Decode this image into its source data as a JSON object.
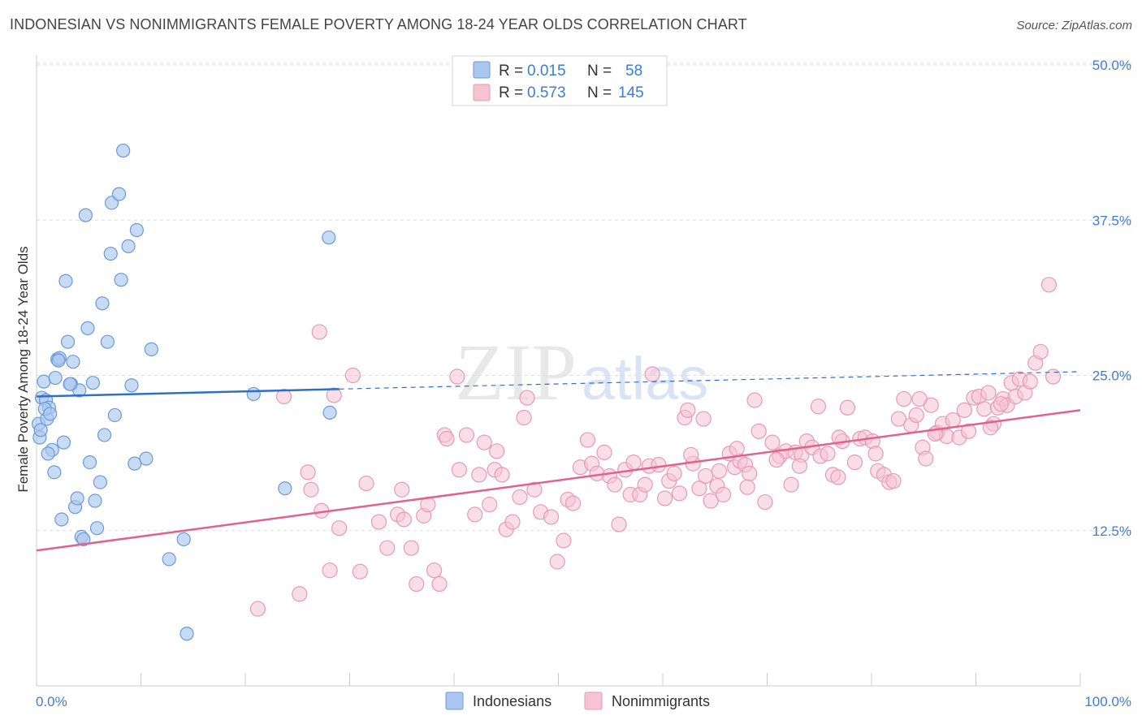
{
  "title": "INDONESIAN VS NONIMMIGRANTS FEMALE POVERTY AMONG 18-24 YEAR OLDS CORRELATION CHART",
  "source": "Source: ZipAtlas.com",
  "watermark": {
    "zip": "ZIP",
    "atlas": "atlas"
  },
  "colors": {
    "blue_fill": "#aac8ef",
    "blue_stroke": "#6a9ad8",
    "blue_line": "#2f6fcc",
    "pink_fill": "#f6c3d3",
    "pink_stroke": "#e79ab3",
    "pink_line": "#e0628e",
    "grid": "#dddddd",
    "axis_label": "#3d7dd6"
  },
  "legend": {
    "row1": {
      "r_label": "R = ",
      "r_value": "0.015",
      "n_label": "N = ",
      "n_value": "58"
    },
    "row2": {
      "r_label": "R = ",
      "r_value": "0.573",
      "n_label": "N = ",
      "n_value": "145"
    }
  },
  "chart_data": {
    "type": "scatter",
    "title": "INDONESIAN VS NONIMMIGRANTS FEMALE POVERTY AMONG 18-24 YEAR OLDS CORRELATION CHART",
    "xlabel": "",
    "ylabel": "Female Poverty Among 18-24 Year Olds",
    "xlim": [
      0,
      100
    ],
    "ylim": [
      0,
      50
    ],
    "x_tick_labels": [
      "0.0%",
      "100.0%"
    ],
    "y_ticks": [
      12.5,
      25.0,
      37.5,
      50.0
    ],
    "y_tick_labels": [
      "12.5%",
      "25.0%",
      "37.5%",
      "50.0%"
    ],
    "grid": true,
    "legend_position": "top-center",
    "series": [
      {
        "name": "Indonesians",
        "R": 0.015,
        "N": 58,
        "trend": {
          "x": [
            0,
            29
          ],
          "y": [
            23.3,
            23.9
          ]
        },
        "trend_extension": {
          "x": [
            29,
            100
          ],
          "y": [
            23.9,
            25.3
          ]
        },
        "points": [
          [
            0.2,
            21.1
          ],
          [
            0.3,
            20.0
          ],
          [
            0.5,
            23.2
          ],
          [
            0.7,
            24.5
          ],
          [
            0.9,
            23.0
          ],
          [
            1.0,
            21.5
          ],
          [
            1.2,
            22.4
          ],
          [
            1.5,
            19.0
          ],
          [
            1.7,
            17.2
          ],
          [
            1.8,
            24.8
          ],
          [
            2.0,
            26.3
          ],
          [
            2.2,
            26.4
          ],
          [
            2.4,
            13.4
          ],
          [
            2.6,
            19.6
          ],
          [
            2.8,
            32.6
          ],
          [
            3.0,
            27.7
          ],
          [
            3.3,
            24.3
          ],
          [
            3.5,
            26.1
          ],
          [
            3.7,
            14.4
          ],
          [
            3.9,
            15.1
          ],
          [
            4.1,
            23.8
          ],
          [
            4.3,
            12.0
          ],
          [
            4.5,
            11.8
          ],
          [
            4.7,
            37.9
          ],
          [
            4.9,
            28.8
          ],
          [
            5.1,
            18.0
          ],
          [
            5.4,
            24.4
          ],
          [
            5.6,
            14.9
          ],
          [
            5.8,
            12.7
          ],
          [
            6.1,
            16.4
          ],
          [
            6.3,
            30.8
          ],
          [
            6.5,
            20.2
          ],
          [
            6.8,
            27.7
          ],
          [
            7.1,
            34.8
          ],
          [
            7.2,
            38.9
          ],
          [
            7.5,
            21.8
          ],
          [
            7.9,
            39.6
          ],
          [
            8.1,
            32.7
          ],
          [
            8.3,
            43.1
          ],
          [
            8.8,
            35.4
          ],
          [
            9.1,
            24.2
          ],
          [
            9.4,
            17.9
          ],
          [
            9.6,
            36.7
          ],
          [
            10.5,
            18.3
          ],
          [
            11.0,
            27.1
          ],
          [
            12.7,
            10.2
          ],
          [
            14.1,
            11.8
          ],
          [
            14.4,
            4.2
          ],
          [
            20.8,
            23.5
          ],
          [
            23.8,
            15.9
          ],
          [
            28.0,
            36.1
          ],
          [
            28.1,
            22.0
          ],
          [
            0.8,
            22.3
          ],
          [
            1.3,
            21.9
          ],
          [
            2.1,
            26.2
          ],
          [
            1.1,
            18.7
          ],
          [
            3.2,
            24.3
          ],
          [
            0.4,
            20.6
          ]
        ]
      },
      {
        "name": "Nonimmigrants",
        "R": 0.573,
        "N": 145,
        "trend": {
          "x": [
            0,
            100
          ],
          "y": [
            10.9,
            22.2
          ]
        },
        "points": [
          [
            21.2,
            6.2
          ],
          [
            23.7,
            23.3
          ],
          [
            25.2,
            7.4
          ],
          [
            26.0,
            17.2
          ],
          [
            26.3,
            15.8
          ],
          [
            27.1,
            28.5
          ],
          [
            27.3,
            14.1
          ],
          [
            28.1,
            9.3
          ],
          [
            28.5,
            23.4
          ],
          [
            29.0,
            12.7
          ],
          [
            30.3,
            25.0
          ],
          [
            31.0,
            9.2
          ],
          [
            31.6,
            16.3
          ],
          [
            32.8,
            13.2
          ],
          [
            33.6,
            11.1
          ],
          [
            34.6,
            13.8
          ],
          [
            35.0,
            15.8
          ],
          [
            35.2,
            13.4
          ],
          [
            35.9,
            11.1
          ],
          [
            36.4,
            8.2
          ],
          [
            37.1,
            13.7
          ],
          [
            37.5,
            14.6
          ],
          [
            38.1,
            9.3
          ],
          [
            38.6,
            8.2
          ],
          [
            39.1,
            20.2
          ],
          [
            39.3,
            19.9
          ],
          [
            40.3,
            24.9
          ],
          [
            40.5,
            17.4
          ],
          [
            41.2,
            20.2
          ],
          [
            42.0,
            13.8
          ],
          [
            42.4,
            17.0
          ],
          [
            42.9,
            19.6
          ],
          [
            43.4,
            14.6
          ],
          [
            43.9,
            17.4
          ],
          [
            44.1,
            18.9
          ],
          [
            44.6,
            17.0
          ],
          [
            45.0,
            12.6
          ],
          [
            45.6,
            13.2
          ],
          [
            46.3,
            15.2
          ],
          [
            46.7,
            21.6
          ],
          [
            47.0,
            23.2
          ],
          [
            47.7,
            15.8
          ],
          [
            48.3,
            14.0
          ],
          [
            49.3,
            13.6
          ],
          [
            49.9,
            10.0
          ],
          [
            50.5,
            11.7
          ],
          [
            50.9,
            15.0
          ],
          [
            51.4,
            14.7
          ],
          [
            52.1,
            17.6
          ],
          [
            52.8,
            19.8
          ],
          [
            53.2,
            17.9
          ],
          [
            53.7,
            17.1
          ],
          [
            54.4,
            18.8
          ],
          [
            54.9,
            16.9
          ],
          [
            55.4,
            16.2
          ],
          [
            55.8,
            13.0
          ],
          [
            56.4,
            17.4
          ],
          [
            56.9,
            15.4
          ],
          [
            57.2,
            18.0
          ],
          [
            57.8,
            15.4
          ],
          [
            58.3,
            16.2
          ],
          [
            58.7,
            17.7
          ],
          [
            59.0,
            25.1
          ],
          [
            59.6,
            17.8
          ],
          [
            60.2,
            15.1
          ],
          [
            60.6,
            16.5
          ],
          [
            61.1,
            17.1
          ],
          [
            61.6,
            15.5
          ],
          [
            62.1,
            21.6
          ],
          [
            62.4,
            22.2
          ],
          [
            62.9,
            17.9
          ],
          [
            63.5,
            15.9
          ],
          [
            64.1,
            16.9
          ],
          [
            64.6,
            14.9
          ],
          [
            65.2,
            16.1
          ],
          [
            65.8,
            15.4
          ],
          [
            66.4,
            18.7
          ],
          [
            66.9,
            17.6
          ],
          [
            67.4,
            18.1
          ],
          [
            67.9,
            17.8
          ],
          [
            68.3,
            17.1
          ],
          [
            68.8,
            23.0
          ],
          [
            69.2,
            20.5
          ],
          [
            69.8,
            14.8
          ],
          [
            70.5,
            19.6
          ],
          [
            71.2,
            18.5
          ],
          [
            71.8,
            18.9
          ],
          [
            72.3,
            16.2
          ],
          [
            72.7,
            18.8
          ],
          [
            73.3,
            18.6
          ],
          [
            73.8,
            19.7
          ],
          [
            74.3,
            19.2
          ],
          [
            75.1,
            18.5
          ],
          [
            75.8,
            18.7
          ],
          [
            76.3,
            17.0
          ],
          [
            76.8,
            16.8
          ],
          [
            77.2,
            19.7
          ],
          [
            77.7,
            22.4
          ],
          [
            78.4,
            18.0
          ],
          [
            78.9,
            19.9
          ],
          [
            79.4,
            20.0
          ],
          [
            80.1,
            19.7
          ],
          [
            80.6,
            17.3
          ],
          [
            81.2,
            17.0
          ],
          [
            81.7,
            16.4
          ],
          [
            82.1,
            16.5
          ],
          [
            82.6,
            21.5
          ],
          [
            83.1,
            23.1
          ],
          [
            83.8,
            21.0
          ],
          [
            84.3,
            21.8
          ],
          [
            84.9,
            19.2
          ],
          [
            85.2,
            18.3
          ],
          [
            85.7,
            22.6
          ],
          [
            86.3,
            20.4
          ],
          [
            86.8,
            21.1
          ],
          [
            87.2,
            20.1
          ],
          [
            87.8,
            21.4
          ],
          [
            88.4,
            20.0
          ],
          [
            88.9,
            22.2
          ],
          [
            89.3,
            20.5
          ],
          [
            89.8,
            23.2
          ],
          [
            90.3,
            23.3
          ],
          [
            90.8,
            22.3
          ],
          [
            91.2,
            23.6
          ],
          [
            91.7,
            21.1
          ],
          [
            92.1,
            22.4
          ],
          [
            92.6,
            23.1
          ],
          [
            93.0,
            22.6
          ],
          [
            93.4,
            24.4
          ],
          [
            93.8,
            23.3
          ],
          [
            94.2,
            24.7
          ],
          [
            94.7,
            23.6
          ],
          [
            95.2,
            24.5
          ],
          [
            95.7,
            26.0
          ],
          [
            96.2,
            26.9
          ],
          [
            97.0,
            32.3
          ],
          [
            86.1,
            20.3
          ],
          [
            84.6,
            23.1
          ],
          [
            80.4,
            18.7
          ],
          [
            76.9,
            20.0
          ],
          [
            74.9,
            22.5
          ],
          [
            73.1,
            17.7
          ],
          [
            70.9,
            18.2
          ],
          [
            68.1,
            16.0
          ],
          [
            67.1,
            19.1
          ],
          [
            65.4,
            17.3
          ],
          [
            63.9,
            21.5
          ],
          [
            62.7,
            18.6
          ],
          [
            92.4,
            22.7
          ],
          [
            91.4,
            20.8
          ],
          [
            97.4,
            24.9
          ]
        ]
      }
    ]
  },
  "axis": {
    "ylabel": "Female Poverty Among 18-24 Year Olds",
    "x_left": "0.0%",
    "x_right": "100.0%",
    "y_ticks": [
      "50.0%",
      "37.5%",
      "25.0%",
      "12.5%"
    ]
  },
  "bottom_legend": {
    "item1": "Indonesians",
    "item2": "Nonimmigrants"
  }
}
